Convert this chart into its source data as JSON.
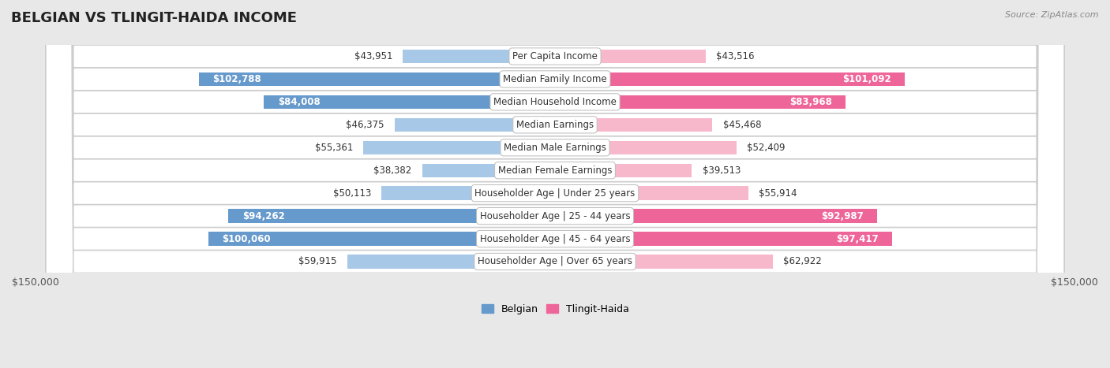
{
  "title": "BELGIAN VS TLINGIT-HAIDA INCOME",
  "source": "Source: ZipAtlas.com",
  "categories": [
    "Per Capita Income",
    "Median Family Income",
    "Median Household Income",
    "Median Earnings",
    "Median Male Earnings",
    "Median Female Earnings",
    "Householder Age | Under 25 years",
    "Householder Age | 25 - 44 years",
    "Householder Age | 45 - 64 years",
    "Householder Age | Over 65 years"
  ],
  "belgian_values": [
    43951,
    102788,
    84008,
    46375,
    55361,
    38382,
    50113,
    94262,
    100060,
    59915
  ],
  "tlingit_values": [
    43516,
    101092,
    83968,
    45468,
    52409,
    39513,
    55914,
    92987,
    97417,
    62922
  ],
  "belgian_labels": [
    "$43,951",
    "$102,788",
    "$84,008",
    "$46,375",
    "$55,361",
    "$38,382",
    "$50,113",
    "$94,262",
    "$100,060",
    "$59,915"
  ],
  "tlingit_labels": [
    "$43,516",
    "$101,092",
    "$83,968",
    "$45,468",
    "$52,409",
    "$39,513",
    "$55,914",
    "$92,987",
    "$97,417",
    "$62,922"
  ],
  "belgian_color_light": "#a8c8e8",
  "belgian_color_dark": "#6699cc",
  "tlingit_color_light": "#f8b8cc",
  "tlingit_color_dark": "#ee6699",
  "inside_threshold": 65000,
  "max_value": 150000,
  "bg_color": "#e8e8e8",
  "row_bg": "#ffffff",
  "row_border": "#cccccc",
  "title_fontsize": 13,
  "label_fontsize": 8.5,
  "cat_fontsize": 8.5,
  "axis_fontsize": 9,
  "legend_fontsize": 9
}
